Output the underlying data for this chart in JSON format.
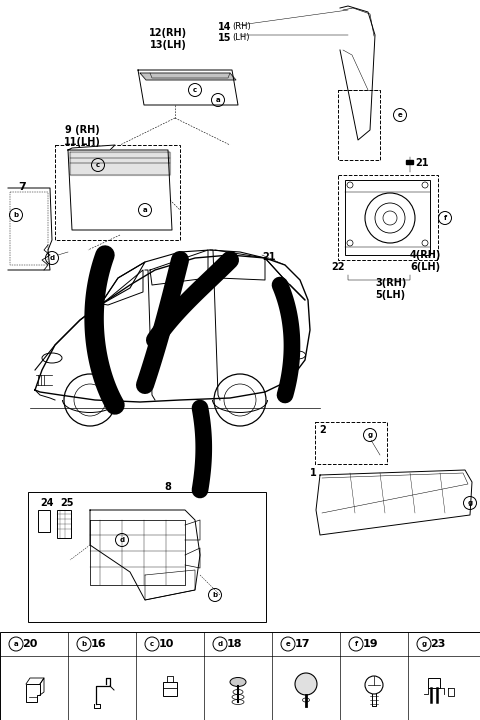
{
  "bg_color": "#ffffff",
  "fig_width": 4.8,
  "fig_height": 7.2,
  "dpi": 100,
  "legend_labels": [
    "a",
    "b",
    "c",
    "d",
    "e",
    "f",
    "g"
  ],
  "legend_nums": [
    "20",
    "16",
    "10",
    "18",
    "17",
    "19",
    "23"
  ]
}
